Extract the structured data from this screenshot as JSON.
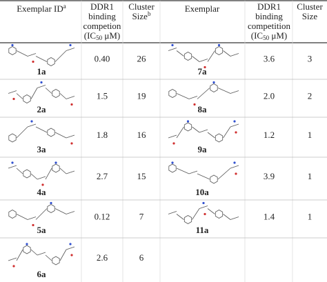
{
  "header": [
    {
      "lines": [
        {
          "text": "Exemplar ID",
          "sup": "a"
        }
      ]
    },
    {
      "lines": [
        {
          "text": "DDR1"
        },
        {
          "text": "binding"
        },
        {
          "text": "competion"
        },
        {
          "text": "(IC",
          "sub": "50",
          "after": " μM)"
        }
      ]
    },
    {
      "lines": [
        {
          "text": "Cluster"
        },
        {
          "text": "Size",
          "sup": "b"
        }
      ]
    },
    {
      "lines": [
        {
          "text": "Exemplar"
        }
      ]
    },
    {
      "lines": [
        {
          "text": "DDR1"
        },
        {
          "text": "binding"
        },
        {
          "text": "competition"
        },
        {
          "text": "(IC",
          "sub": "50",
          "after": " μM)"
        }
      ]
    },
    {
      "lines": [
        {
          "text": "Cluster"
        },
        {
          "text": "Size"
        }
      ]
    }
  ],
  "rows": [
    {
      "left": {
        "id": "1a",
        "ic50": "0.40",
        "cluster_size": "26"
      },
      "right": {
        "id": "7a",
        "ic50": "3.6",
        "cluster_size": "3"
      }
    },
    {
      "left": {
        "id": "2a",
        "ic50": "1.5",
        "cluster_size": "19"
      },
      "right": {
        "id": "8a",
        "ic50": "2.0",
        "cluster_size": "2"
      }
    },
    {
      "left": {
        "id": "3a",
        "ic50": "1.8",
        "cluster_size": "16"
      },
      "right": {
        "id": "9a",
        "ic50": "1.2",
        "cluster_size": "1"
      }
    },
    {
      "left": {
        "id": "4a",
        "ic50": "2.7",
        "cluster_size": "15"
      },
      "right": {
        "id": "10a",
        "ic50": "3.9",
        "cluster_size": "1"
      }
    },
    {
      "left": {
        "id": "5a",
        "ic50": "0.12",
        "cluster_size": "7"
      },
      "right": {
        "id": "11a",
        "ic50": "1.4",
        "cluster_size": "1"
      }
    },
    {
      "left": {
        "id": "6a",
        "ic50": "2.6",
        "cluster_size": "6"
      }
    }
  ]
}
